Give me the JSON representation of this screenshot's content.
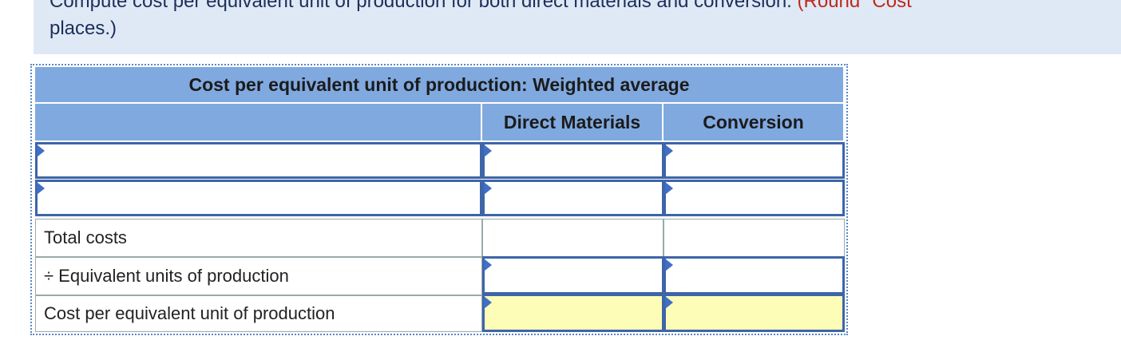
{
  "instruction": {
    "text": "Compute cost per equivalent unit of production for both direct materials and conversion.",
    "note": "(Round \"Cost",
    "continuation": "places.)"
  },
  "table": {
    "title": "Cost per equivalent unit of production: Weighted average",
    "columns": [
      "Direct Materials",
      "Conversion"
    ],
    "rows": [
      "Total costs",
      "÷ Equivalent units of production",
      "Cost per equivalent unit of production"
    ]
  }
}
